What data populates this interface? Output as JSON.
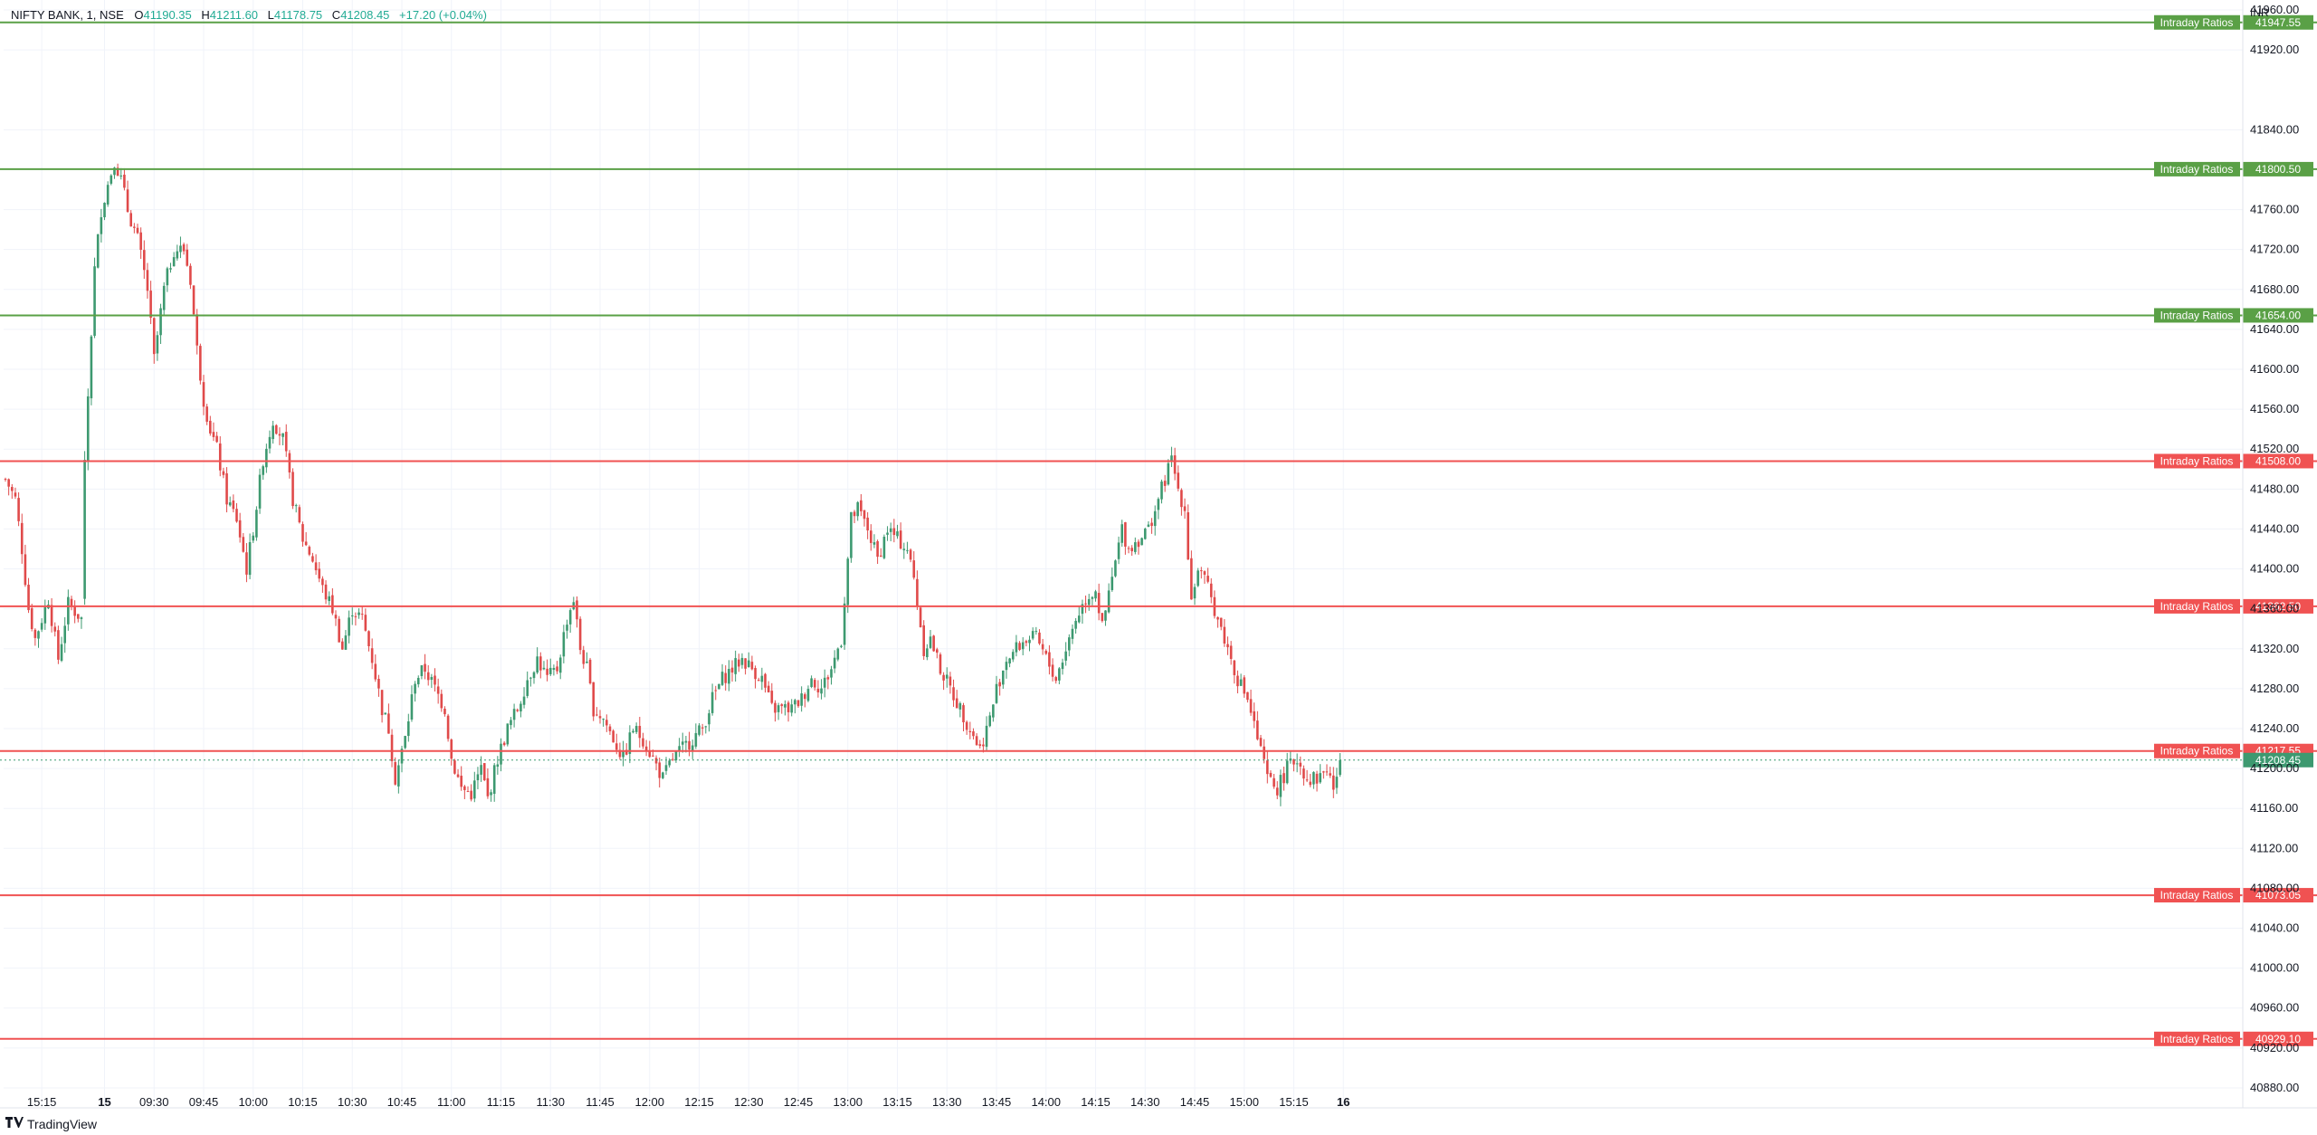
{
  "legend": {
    "symbol": "NIFTY BANK, 1, NSE",
    "open_label": "O",
    "open": "41190.35",
    "high_label": "H",
    "high": "41211.60",
    "low_label": "L",
    "low": "41178.75",
    "close_label": "C",
    "close": "41208.45",
    "change": "+17.20 (+0.04%)"
  },
  "footer": {
    "brand": "TradingView"
  },
  "colors": {
    "up": "#22ab94",
    "down": "#f23645",
    "candle_up": "#3d9970",
    "candle_down": "#e04a4a",
    "green_level": "#5aa046",
    "red_level": "#f05252",
    "grid": "#f0f3fa",
    "text": "#131722"
  },
  "chart_data": {
    "type": "candlestick",
    "currency": "INR",
    "ylim": [
      40860,
      41970
    ],
    "y_ticks": [
      41960,
      41920,
      41840,
      41760,
      41720,
      41680,
      41640,
      41600,
      41560,
      41520,
      41480,
      41440,
      41400,
      41360,
      41320,
      41280,
      41240,
      41200,
      41160,
      41120,
      41080,
      41040,
      41000,
      40960,
      40920,
      40880
    ],
    "y_tick_labels": [
      "41960.00",
      "41920.00",
      "41840.00",
      "41760.00",
      "41720.00",
      "41680.00",
      "41640.00",
      "41600.00",
      "41560.00",
      "41520.00",
      "41480.00",
      "41440.00",
      "41400.00",
      "41360.00",
      "41320.00",
      "41280.00",
      "41240.00",
      "41200.00",
      "41160.00",
      "41120.00",
      "41080.00",
      "41040.00",
      "41000.00",
      "40960.00",
      "40920.00",
      "40880.00"
    ],
    "x_ticks": [
      {
        "label": "15:15",
        "t": 11
      },
      {
        "label": "15",
        "t": 30
      },
      {
        "label": "09:30",
        "t": 45
      },
      {
        "label": "09:45",
        "t": 60
      },
      {
        "label": "10:00",
        "t": 75
      },
      {
        "label": "10:15",
        "t": 90
      },
      {
        "label": "10:30",
        "t": 105
      },
      {
        "label": "10:45",
        "t": 120
      },
      {
        "label": "11:00",
        "t": 135
      },
      {
        "label": "11:15",
        "t": 150
      },
      {
        "label": "11:30",
        "t": 165
      },
      {
        "label": "11:45",
        "t": 180
      },
      {
        "label": "12:00",
        "t": 195
      },
      {
        "label": "12:15",
        "t": 210
      },
      {
        "label": "12:30",
        "t": 225
      },
      {
        "label": "12:45",
        "t": 240
      },
      {
        "label": "13:00",
        "t": 255
      },
      {
        "label": "13:15",
        "t": 270
      },
      {
        "label": "13:30",
        "t": 285
      },
      {
        "label": "13:45",
        "t": 300
      },
      {
        "label": "14:00",
        "t": 315
      },
      {
        "label": "14:15",
        "t": 330
      },
      {
        "label": "14:30",
        "t": 345
      },
      {
        "label": "14:45",
        "t": 360
      },
      {
        "label": "15:00",
        "t": 375
      },
      {
        "label": "15:15",
        "t": 390
      },
      {
        "label": "16",
        "t": 405
      }
    ],
    "levels": [
      {
        "label": "Intraday Ratios",
        "price": 41947.55,
        "price_label": "41947.55",
        "color": "green"
      },
      {
        "label": "Intraday Ratios",
        "price": 41800.5,
        "price_label": "41800.50",
        "color": "green"
      },
      {
        "label": "Intraday Ratios",
        "price": 41654.0,
        "price_label": "41654.00",
        "color": "green"
      },
      {
        "label": "Intraday Ratios",
        "price": 41508.0,
        "price_label": "41508.00",
        "color": "red"
      },
      {
        "label": "Intraday Ratios",
        "price": 41362.5,
        "price_label": "41362.50",
        "color": "red"
      },
      {
        "label": "Intraday Ratios",
        "price": 41217.55,
        "price_label": "41217.55",
        "color": "red"
      },
      {
        "label": "Intraday Ratios",
        "price": 41073.05,
        "price_label": "41073.05",
        "color": "red"
      },
      {
        "label": "Intraday Ratios",
        "price": 40929.1,
        "price_label": "40929.10",
        "color": "red"
      }
    ],
    "last_price": {
      "price": 41208.45,
      "label": "41208.45"
    },
    "waypoints": [
      [
        0,
        41490
      ],
      [
        3,
        41470
      ],
      [
        5,
        41420
      ],
      [
        7,
        41360
      ],
      [
        9,
        41330
      ],
      [
        13,
        41370
      ],
      [
        16,
        41310
      ],
      [
        19,
        41365
      ],
      [
        23,
        41350
      ],
      [
        24,
        41510
      ],
      [
        27,
        41700
      ],
      [
        29,
        41760
      ],
      [
        33,
        41810
      ],
      [
        35,
        41790
      ],
      [
        37,
        41760
      ],
      [
        40,
        41730
      ],
      [
        43,
        41680
      ],
      [
        45,
        41610
      ],
      [
        48,
        41680
      ],
      [
        51,
        41720
      ],
      [
        54,
        41720
      ],
      [
        56,
        41690
      ],
      [
        58,
        41620
      ],
      [
        60,
        41570
      ],
      [
        62,
        41540
      ],
      [
        64,
        41520
      ],
      [
        67,
        41470
      ],
      [
        70,
        41450
      ],
      [
        73,
        41400
      ],
      [
        75,
        41440
      ],
      [
        78,
        41510
      ],
      [
        81,
        41550
      ],
      [
        84,
        41530
      ],
      [
        87,
        41470
      ],
      [
        90,
        41430
      ],
      [
        93,
        41410
      ],
      [
        96,
        41380
      ],
      [
        99,
        41360
      ],
      [
        102,
        41320
      ],
      [
        105,
        41360
      ],
      [
        108,
        41350
      ],
      [
        111,
        41310
      ],
      [
        114,
        41260
      ],
      [
        116,
        41240
      ],
      [
        118,
        41190
      ],
      [
        121,
        41230
      ],
      [
        124,
        41290
      ],
      [
        127,
        41300
      ],
      [
        130,
        41280
      ],
      [
        133,
        41260
      ],
      [
        135,
        41210
      ],
      [
        138,
        41180
      ],
      [
        141,
        41175
      ],
      [
        144,
        41200
      ],
      [
        146,
        41170
      ],
      [
        149,
        41210
      ],
      [
        152,
        41240
      ],
      [
        155,
        41260
      ],
      [
        158,
        41290
      ],
      [
        161,
        41310
      ],
      [
        164,
        41290
      ],
      [
        167,
        41300
      ],
      [
        170,
        41350
      ],
      [
        172,
        41370
      ],
      [
        174,
        41320
      ],
      [
        176,
        41300
      ],
      [
        178,
        41260
      ],
      [
        181,
        41250
      ],
      [
        184,
        41230
      ],
      [
        187,
        41210
      ],
      [
        190,
        41240
      ],
      [
        193,
        41230
      ],
      [
        196,
        41210
      ],
      [
        199,
        41190
      ],
      [
        202,
        41210
      ],
      [
        205,
        41220
      ],
      [
        208,
        41230
      ],
      [
        211,
        41240
      ],
      [
        214,
        41270
      ],
      [
        217,
        41290
      ],
      [
        220,
        41300
      ],
      [
        223,
        41310
      ],
      [
        226,
        41300
      ],
      [
        229,
        41290
      ],
      [
        232,
        41260
      ],
      [
        235,
        41260
      ],
      [
        238,
        41260
      ],
      [
        241,
        41270
      ],
      [
        244,
        41290
      ],
      [
        247,
        41280
      ],
      [
        250,
        41300
      ],
      [
        253,
        41330
      ],
      [
        256,
        41450
      ],
      [
        258,
        41460
      ],
      [
        261,
        41440
      ],
      [
        264,
        41410
      ],
      [
        267,
        41440
      ],
      [
        270,
        41430
      ],
      [
        273,
        41420
      ],
      [
        275,
        41390
      ],
      [
        278,
        41320
      ],
      [
        280,
        41330
      ],
      [
        283,
        41300
      ],
      [
        286,
        41280
      ],
      [
        289,
        41260
      ],
      [
        292,
        41240
      ],
      [
        295,
        41220
      ],
      [
        298,
        41250
      ],
      [
        300,
        41280
      ],
      [
        303,
        41310
      ],
      [
        306,
        41320
      ],
      [
        309,
        41330
      ],
      [
        312,
        41330
      ],
      [
        315,
        41310
      ],
      [
        318,
        41290
      ],
      [
        321,
        41320
      ],
      [
        324,
        41350
      ],
      [
        327,
        41370
      ],
      [
        330,
        41380
      ],
      [
        332,
        41340
      ],
      [
        335,
        41390
      ],
      [
        338,
        41440
      ],
      [
        340,
        41420
      ],
      [
        343,
        41430
      ],
      [
        346,
        41440
      ],
      [
        348,
        41460
      ],
      [
        351,
        41490
      ],
      [
        353,
        41510
      ],
      [
        355,
        41480
      ],
      [
        357,
        41460
      ],
      [
        359,
        41370
      ],
      [
        361,
        41400
      ],
      [
        364,
        41380
      ],
      [
        367,
        41350
      ],
      [
        370,
        41320
      ],
      [
        373,
        41290
      ],
      [
        376,
        41270
      ],
      [
        379,
        41230
      ],
      [
        382,
        41190
      ],
      [
        385,
        41180
      ],
      [
        388,
        41200
      ],
      [
        391,
        41210
      ],
      [
        394,
        41190
      ],
      [
        397,
        41190
      ],
      [
        400,
        41200
      ],
      [
        402,
        41180
      ],
      [
        404,
        41208.45
      ]
    ]
  }
}
